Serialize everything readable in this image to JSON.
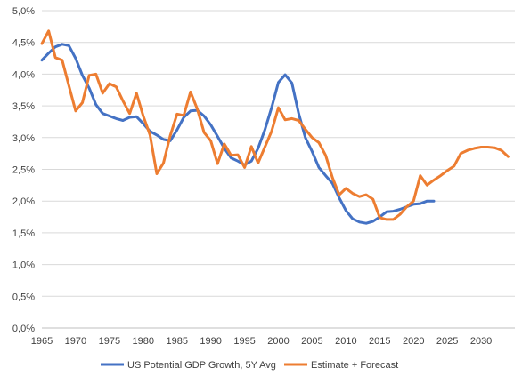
{
  "chart_data": {
    "type": "line",
    "title": "",
    "xlabel": "",
    "ylabel": "",
    "xlim": [
      1965,
      2035
    ],
    "ylim": [
      0,
      5
    ],
    "grid": "horizontal",
    "legend_position": "bottom",
    "x_ticks": [
      "1965",
      "1970",
      "1975",
      "1980",
      "1985",
      "1990",
      "1995",
      "2000",
      "2005",
      "2010",
      "2015",
      "2020",
      "2025",
      "2030"
    ],
    "y_ticks": [
      "0,0%",
      "0,5%",
      "1,0%",
      "1,5%",
      "2,0%",
      "2,5%",
      "3,0%",
      "3,5%",
      "4,0%",
      "4,5%",
      "5,0%"
    ],
    "series": [
      {
        "name": "US Potential GDP Growth, 5Y Avg",
        "color": "#4472C4",
        "x": [
          1965,
          1966,
          1967,
          1968,
          1969,
          1970,
          1971,
          1972,
          1973,
          1974,
          1975,
          1976,
          1977,
          1978,
          1979,
          1980,
          1981,
          1982,
          1983,
          1984,
          1985,
          1986,
          1987,
          1988,
          1989,
          1990,
          1991,
          1992,
          1993,
          1994,
          1995,
          1996,
          1997,
          1998,
          1999,
          2000,
          2001,
          2002,
          2003,
          2004,
          2005,
          2006,
          2007,
          2008,
          2009,
          2010,
          2011,
          2012,
          2013,
          2014,
          2015,
          2016,
          2017,
          2018,
          2019,
          2020,
          2021,
          2022,
          2023
        ],
        "y": [
          4.22,
          4.33,
          4.43,
          4.47,
          4.45,
          4.25,
          3.98,
          3.78,
          3.52,
          3.38,
          3.34,
          3.3,
          3.27,
          3.32,
          3.33,
          3.22,
          3.1,
          3.04,
          2.97,
          2.95,
          3.12,
          3.32,
          3.42,
          3.43,
          3.34,
          3.2,
          3.02,
          2.83,
          2.68,
          2.63,
          2.57,
          2.63,
          2.83,
          3.12,
          3.47,
          3.87,
          3.99,
          3.86,
          3.38,
          3.0,
          2.78,
          2.53,
          2.4,
          2.28,
          2.05,
          1.85,
          1.72,
          1.67,
          1.65,
          1.68,
          1.75,
          1.83,
          1.84,
          1.87,
          1.91,
          1.95,
          1.96,
          2.0,
          2.0
        ]
      },
      {
        "name": "Estimate + Forecast",
        "color": "#ED7D31",
        "x": [
          1965,
          1966,
          1967,
          1968,
          1969,
          1970,
          1971,
          1972,
          1973,
          1974,
          1975,
          1976,
          1977,
          1978,
          1979,
          1980,
          1981,
          1982,
          1983,
          1984,
          1985,
          1986,
          1987,
          1988,
          1989,
          1990,
          1991,
          1992,
          1993,
          1994,
          1995,
          1996,
          1997,
          1998,
          1999,
          2000,
          2001,
          2002,
          2003,
          2004,
          2005,
          2006,
          2007,
          2008,
          2009,
          2010,
          2011,
          2012,
          2013,
          2014,
          2015,
          2016,
          2017,
          2018,
          2019,
          2020,
          2021,
          2022,
          2023,
          2024,
          2025,
          2026,
          2027,
          2028,
          2029,
          2030,
          2031,
          2032,
          2033,
          2034
        ],
        "y": [
          4.48,
          4.68,
          4.26,
          4.22,
          3.82,
          3.42,
          3.55,
          3.98,
          4.0,
          3.7,
          3.85,
          3.8,
          3.58,
          3.38,
          3.7,
          3.34,
          3.04,
          2.43,
          2.6,
          3.03,
          3.37,
          3.35,
          3.72,
          3.45,
          3.08,
          2.95,
          2.59,
          2.9,
          2.72,
          2.73,
          2.53,
          2.86,
          2.6,
          2.85,
          3.1,
          3.47,
          3.28,
          3.3,
          3.27,
          3.13,
          3.0,
          2.92,
          2.72,
          2.37,
          2.1,
          2.2,
          2.12,
          2.07,
          2.1,
          2.03,
          1.74,
          1.71,
          1.71,
          1.79,
          1.91,
          2.0,
          2.4,
          2.25,
          2.33,
          2.4,
          2.48,
          2.55,
          2.75,
          2.8,
          2.83,
          2.85,
          2.85,
          2.84,
          2.8,
          2.7
        ]
      }
    ]
  }
}
